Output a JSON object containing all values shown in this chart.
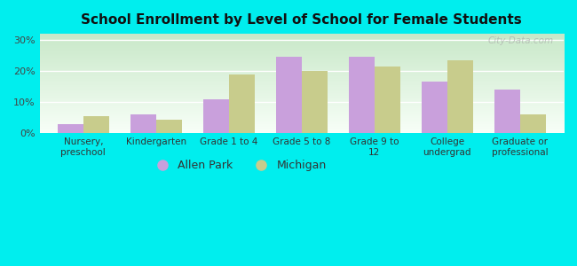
{
  "title": "School Enrollment by Level of School for Female Students",
  "categories": [
    "Nursery,\npreschool",
    "Kindergarten",
    "Grade 1 to 4",
    "Grade 5 to 8",
    "Grade 9 to\n12",
    "College\nundergrad",
    "Graduate or\nprofessional"
  ],
  "allen_park": [
    3.0,
    6.0,
    11.0,
    24.5,
    24.5,
    16.5,
    14.0
  ],
  "michigan": [
    5.5,
    4.5,
    19.0,
    20.0,
    21.5,
    23.5,
    6.0
  ],
  "allen_park_color": "#c9a0dc",
  "michigan_color": "#c8cc8c",
  "background_color": "#00eeee",
  "grad_top": "#c8e8c8",
  "grad_bottom": "#f8fff8",
  "ylim": [
    0,
    32
  ],
  "yticks": [
    0,
    10,
    20,
    30
  ],
  "ytick_labels": [
    "0%",
    "10%",
    "20%",
    "30%"
  ],
  "bar_width": 0.35,
  "legend_labels": [
    "Allen Park",
    "Michigan"
  ],
  "watermark": "City-Data.com"
}
